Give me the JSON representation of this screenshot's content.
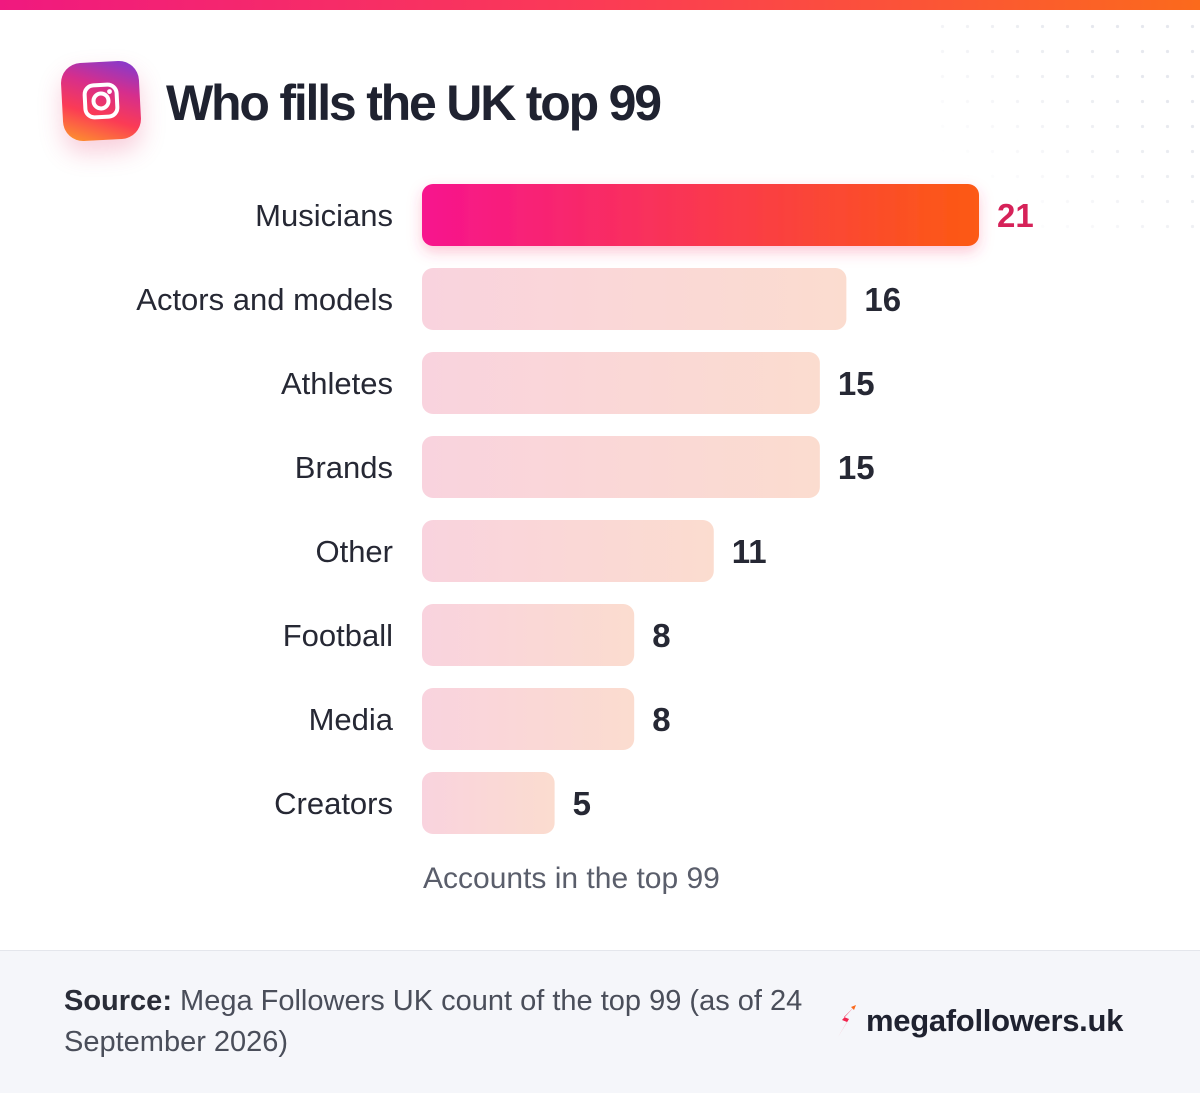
{
  "header": {
    "title": "Who fills the UK top 99",
    "logo_icon": "instagram-icon"
  },
  "chart_data": {
    "type": "bar",
    "orientation": "horizontal",
    "title": "Who fills the UK top 99",
    "xlabel": "Accounts in the top 99",
    "ylabel": "",
    "xlim": [
      0,
      21
    ],
    "grid": false,
    "categories": [
      "Musicians",
      "Actors and models",
      "Athletes",
      "Brands",
      "Other",
      "Football",
      "Media",
      "Creators"
    ],
    "values": [
      21,
      16,
      15,
      15,
      11,
      8,
      8,
      5
    ],
    "highlight_index": 0,
    "colors": {
      "highlight_start": "#f7148e",
      "highlight_end": "#fc5a12",
      "highlight_label": "#d62259",
      "bar_start": "#f9d3de",
      "bar_end": "#fbdccf",
      "label": "#262834"
    }
  },
  "footer": {
    "source_label": "Source:",
    "source_text": "Mega Followers UK count of the top 99 (as of 24 September 2026)",
    "brand_icon": "rocket-icon",
    "brand_name": "megafollowers.uk"
  }
}
